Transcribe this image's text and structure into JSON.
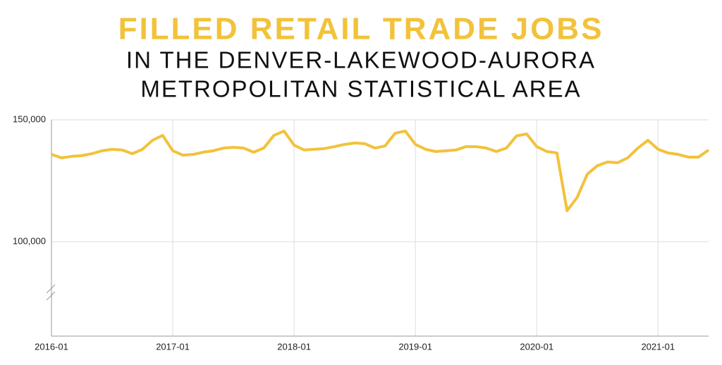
{
  "chart_data": {
    "type": "line",
    "title": "FILLED RETAIL TRADE JOBS",
    "subtitle": [
      "IN THE DENVER-LAKEWOOD-AURORA",
      "METROPOLITAN STATISTICAL AREA"
    ],
    "x": [
      "2016-01",
      "2016-02",
      "2016-03",
      "2016-04",
      "2016-05",
      "2016-06",
      "2016-07",
      "2016-08",
      "2016-09",
      "2016-10",
      "2016-11",
      "2016-12",
      "2017-01",
      "2017-02",
      "2017-03",
      "2017-04",
      "2017-05",
      "2017-06",
      "2017-07",
      "2017-08",
      "2017-09",
      "2017-10",
      "2017-11",
      "2017-12",
      "2018-01",
      "2018-02",
      "2018-03",
      "2018-04",
      "2018-05",
      "2018-06",
      "2018-07",
      "2018-08",
      "2018-09",
      "2018-10",
      "2018-11",
      "2018-12",
      "2019-01",
      "2019-02",
      "2019-03",
      "2019-04",
      "2019-05",
      "2019-06",
      "2019-07",
      "2019-08",
      "2019-09",
      "2019-10",
      "2019-11",
      "2019-12",
      "2020-01",
      "2020-02",
      "2020-03",
      "2020-04",
      "2020-05",
      "2020-06",
      "2020-07",
      "2020-08",
      "2020-09",
      "2020-10",
      "2020-11",
      "2020-12",
      "2021-01",
      "2021-02",
      "2021-03",
      "2021-04",
      "2021-05",
      "2021-06"
    ],
    "series": [
      {
        "name": "Filled retail trade jobs",
        "color": "#f2c23a",
        "values": [
          135800,
          134400,
          135000,
          135300,
          136100,
          137300,
          137900,
          137600,
          136100,
          137900,
          141600,
          143600,
          137300,
          135500,
          135800,
          136700,
          137300,
          138400,
          138700,
          138400,
          136700,
          138400,
          143600,
          145400,
          139600,
          137600,
          137900,
          138200,
          139000,
          139900,
          140500,
          140200,
          138400,
          139300,
          144500,
          145400,
          139900,
          137900,
          137000,
          137300,
          137600,
          139000,
          139000,
          138400,
          137000,
          138400,
          143400,
          144200,
          139000,
          137000,
          136400,
          112700,
          118200,
          127700,
          131200,
          132700,
          132400,
          134400,
          138400,
          141600,
          137900,
          136400,
          135800,
          134700,
          134700,
          137600
        ]
      }
    ],
    "xticks": [
      "2016-01",
      "2017-01",
      "2018-01",
      "2019-01",
      "2020-01",
      "2021-01"
    ],
    "ylim": [
      61300,
      150000
    ],
    "yticks": [
      {
        "value": 100000,
        "label": "100,000"
      },
      {
        "value": 150000,
        "label": "150,000"
      }
    ],
    "grid": true
  }
}
